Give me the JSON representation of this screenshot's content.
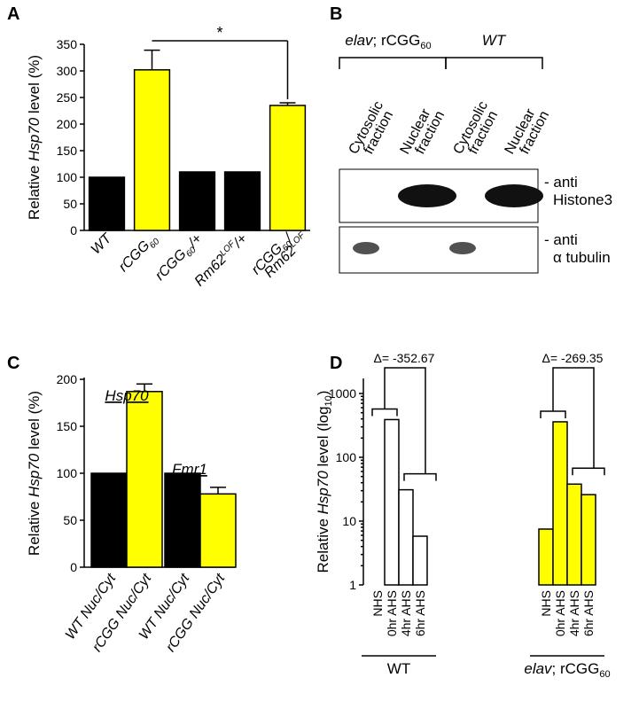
{
  "colors": {
    "wt": "#000000",
    "mutant": "#ffff00",
    "empty": "#ffffff",
    "stroke": "#000000"
  },
  "panels": {
    "a": {
      "letter": "A"
    },
    "b": {
      "letter": "B"
    },
    "c": {
      "letter": "C"
    },
    "d": {
      "letter": "D"
    }
  },
  "chart_data": [
    {
      "panel": "A",
      "type": "bar",
      "ylabel": "Relative Hsp70 level (%)",
      "ylabel_parts": [
        "Relative ",
        "Hsp70",
        " level (%)"
      ],
      "ylim": [
        0,
        350
      ],
      "yticks": [
        0,
        50,
        100,
        150,
        200,
        250,
        300,
        350
      ],
      "categories": [
        "WT",
        "rCGG60",
        "rCGG60/+",
        "Rm62LOF/+",
        "rCGG60/Rm62LOF"
      ],
      "category_display": [
        [
          {
            "t": "WT"
          }
        ],
        [
          {
            "t": "rCGG"
          },
          {
            "t": "60",
            "sub": true
          }
        ],
        [
          {
            "t": "rCGG"
          },
          {
            "t": "60",
            "sub": true
          },
          {
            "t": "/+"
          }
        ],
        [
          {
            "t": "Rm62"
          },
          {
            "t": "LOF",
            "sup": true
          },
          {
            "t": "/+"
          }
        ],
        [
          {
            "t": "rCGG"
          },
          {
            "t": "60",
            "sub": true
          },
          {
            "t": "/"
          }
        ],
        [
          {
            "t": "Rm62"
          },
          {
            "t": "LOF",
            "sup": true
          }
        ]
      ],
      "values": [
        100,
        302,
        110,
        110,
        235
      ],
      "errors": [
        0,
        37,
        0,
        0,
        5
      ],
      "bar_colors": [
        "wt",
        "mutant",
        "wt",
        "wt",
        "mutant"
      ],
      "significance": {
        "from": 1,
        "to": 4,
        "label": "*"
      }
    },
    {
      "panel": "C",
      "type": "bar",
      "ylabel": "Relative Hsp70 level (%)",
      "ylabel_parts": [
        "Relative ",
        "Hsp70",
        " level (%)"
      ],
      "ylim": [
        0,
        200
      ],
      "yticks": [
        0,
        50,
        100,
        150,
        200
      ],
      "groups": [
        "Hsp70",
        "Fmr1"
      ],
      "categories": [
        "WT Nuc/Cyt",
        "rCGG Nuc/Cyt",
        "WT Nuc/Cyt",
        "rCGG Nuc/Cyt"
      ],
      "values": [
        100,
        187,
        100,
        78
      ],
      "errors": [
        0,
        8,
        0,
        7
      ],
      "bar_colors": [
        "wt",
        "mutant",
        "wt",
        "mutant"
      ]
    },
    {
      "panel": "D",
      "type": "bar",
      "scale": "log",
      "ylabel": "Relative Hsp70 level (log10)",
      "ylabel_parts": [
        "Relative ",
        "Hsp70",
        " level (log",
        "10",
        ")"
      ],
      "ylim": [
        1,
        1000
      ],
      "yticks": [
        "1",
        "10",
        "100",
        "1000"
      ],
      "groups": [
        {
          "name": "WT",
          "categories": [
            "NHS",
            "0hr AHS",
            "4hr AHS",
            "6hr AHS"
          ],
          "values": [
            1,
            390,
            31,
            5.8
          ],
          "color": "empty",
          "delta": "Δ= -352.67"
        },
        {
          "name": "elav; rCGG60",
          "name_parts": [
            "elav",
            "; rCGG",
            "60"
          ],
          "categories": [
            "NHS",
            "0hr AHS",
            "4hr AHS",
            "6hr AHS"
          ],
          "values": [
            7.5,
            360,
            38,
            26
          ],
          "color": "mutant",
          "delta": "Δ= -269.35"
        }
      ]
    }
  ],
  "blot": {
    "panel": "B",
    "groups": [
      {
        "name_parts": [
          "elav",
          "; rCGG",
          "60"
        ]
      },
      {
        "name_parts": [
          "WT"
        ]
      }
    ],
    "lanes": [
      "Cytosolic fraction",
      "Nuclear fraction",
      "Cytosolic fraction",
      "Nuclear fraction"
    ],
    "lane_lines": [
      [
        "Cytosolic",
        "fraction"
      ],
      [
        "Nuclear",
        "fraction"
      ],
      [
        "Cytosolic",
        "fraction"
      ],
      [
        "Nuclear",
        "fraction"
      ]
    ],
    "rows": [
      {
        "label_lines": [
          "- anti",
          "Histone3"
        ],
        "bands": [
          0,
          1,
          0,
          1
        ]
      },
      {
        "label_lines": [
          "- anti",
          "α tubulin"
        ],
        "bands": [
          1,
          0,
          1,
          0
        ]
      }
    ]
  }
}
